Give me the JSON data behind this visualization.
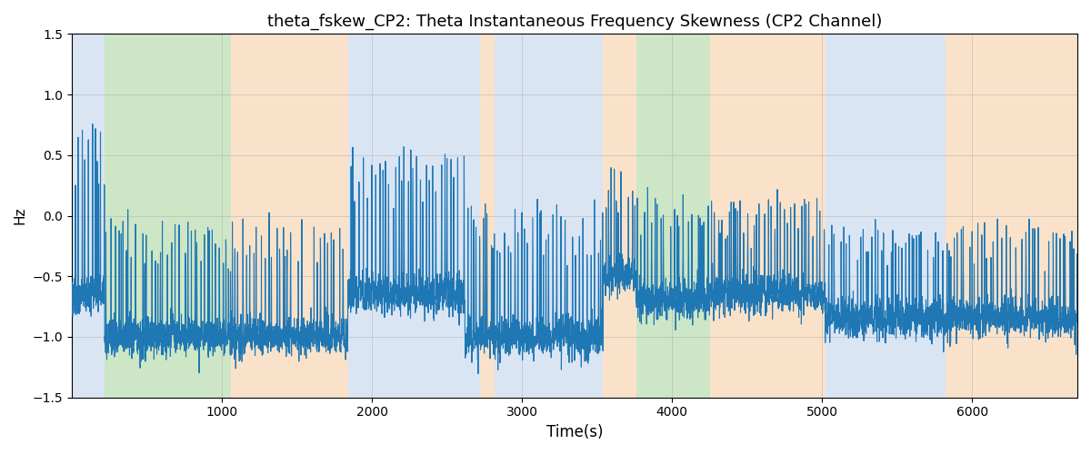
{
  "title": "theta_fskew_CP2: Theta Instantaneous Frequency Skewness (CP2 Channel)",
  "xlabel": "Time(s)",
  "ylabel": "Hz",
  "ylim": [
    -1.5,
    1.5
  ],
  "xlim": [
    0,
    6700
  ],
  "yticks": [
    -1.5,
    -1.0,
    -0.5,
    0.0,
    0.5,
    1.0,
    1.5
  ],
  "xticks": [
    1000,
    2000,
    3000,
    4000,
    5000,
    6000
  ],
  "line_color": "#1f77b4",
  "line_width": 0.8,
  "figsize": [
    12,
    5
  ],
  "dpi": 100,
  "grid_color": "#b0b0b0",
  "grid_alpha": 0.7,
  "bands": [
    {
      "start": 0,
      "end": 220,
      "color": "#aec6e8",
      "alpha": 0.45
    },
    {
      "start": 220,
      "end": 1060,
      "color": "#90c97f",
      "alpha": 0.45
    },
    {
      "start": 1060,
      "end": 1840,
      "color": "#f5c08a",
      "alpha": 0.45
    },
    {
      "start": 1840,
      "end": 2620,
      "color": "#aec6e8",
      "alpha": 0.45
    },
    {
      "start": 2620,
      "end": 2720,
      "color": "#aec6e8",
      "alpha": 0.45
    },
    {
      "start": 2720,
      "end": 2820,
      "color": "#f5c08a",
      "alpha": 0.45
    },
    {
      "start": 2820,
      "end": 3540,
      "color": "#aec6e8",
      "alpha": 0.45
    },
    {
      "start": 3540,
      "end": 3760,
      "color": "#f5c08a",
      "alpha": 0.45
    },
    {
      "start": 3760,
      "end": 4250,
      "color": "#90c97f",
      "alpha": 0.45
    },
    {
      "start": 4250,
      "end": 5020,
      "color": "#f5c08a",
      "alpha": 0.45
    },
    {
      "start": 5020,
      "end": 5820,
      "color": "#aec6e8",
      "alpha": 0.45
    },
    {
      "start": 5820,
      "end": 6700,
      "color": "#f5c08a",
      "alpha": 0.45
    }
  ],
  "segment_polarity": [
    {
      "start": 0,
      "end": 220,
      "baseline": -0.65,
      "spike_dir": 1,
      "spike_mag": 1.4
    },
    {
      "start": 220,
      "end": 1060,
      "baseline": -1.0,
      "spike_dir": 1,
      "spike_mag": 0.9
    },
    {
      "start": 1060,
      "end": 1840,
      "baseline": -1.0,
      "spike_dir": 1,
      "spike_mag": 0.9
    },
    {
      "start": 1840,
      "end": 2620,
      "baseline": -0.65,
      "spike_dir": 1,
      "spike_mag": 1.1
    },
    {
      "start": 2620,
      "end": 2820,
      "baseline": -1.0,
      "spike_dir": 1,
      "spike_mag": 1.0
    },
    {
      "start": 2820,
      "end": 3540,
      "baseline": -1.0,
      "spike_dir": 1,
      "spike_mag": 1.0
    },
    {
      "start": 3540,
      "end": 3760,
      "baseline": -0.5,
      "spike_dir": 1,
      "spike_mag": 0.8
    },
    {
      "start": 3760,
      "end": 4250,
      "baseline": -0.7,
      "spike_dir": 1,
      "spike_mag": 0.75
    },
    {
      "start": 4250,
      "end": 5020,
      "baseline": -0.65,
      "spike_dir": 1,
      "spike_mag": 0.75
    },
    {
      "start": 5020,
      "end": 5820,
      "baseline": -0.85,
      "spike_dir": 1,
      "spike_mag": 0.7
    },
    {
      "start": 5820,
      "end": 6700,
      "baseline": -0.85,
      "spike_dir": 1,
      "spike_mag": 0.7
    }
  ],
  "seed": 77,
  "n_points": 6650
}
